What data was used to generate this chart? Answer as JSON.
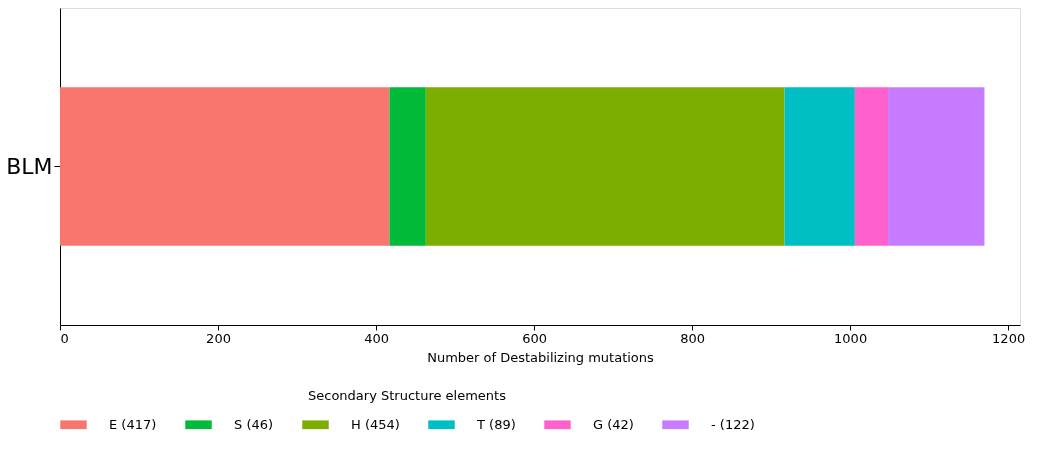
{
  "chart_data": {
    "type": "bar",
    "orientation": "horizontal",
    "stacked": true,
    "categories": [
      "BLM"
    ],
    "series": [
      {
        "name": "E (417)",
        "color": "#f8766d",
        "values": [
          417
        ]
      },
      {
        "name": "S (46)",
        "color": "#00ba38",
        "values": [
          46
        ]
      },
      {
        "name": "H (454)",
        "color": "#7cae00",
        "values": [
          454
        ]
      },
      {
        "name": "T (89)",
        "color": "#00bfc4",
        "values": [
          89
        ]
      },
      {
        "name": "G (42)",
        "color": "#ff61cc",
        "values": [
          42
        ]
      },
      {
        "name": "- (122)",
        "color": "#c77cff",
        "values": [
          122
        ]
      }
    ],
    "xlabel": "Number of Destabilizing mutations",
    "legend_title": "Secondary Structure elements",
    "xlim": [
      0,
      1215
    ],
    "xticks": [
      0,
      200,
      400,
      600,
      800,
      1000,
      1200
    ],
    "grid": false,
    "legend": "bottom"
  }
}
